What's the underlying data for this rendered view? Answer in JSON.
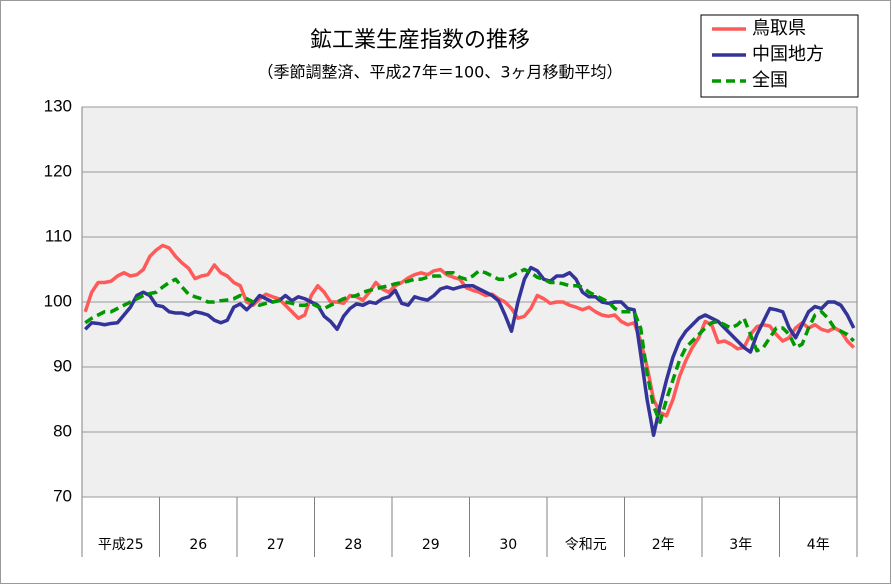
{
  "chart_data": {
    "type": "line",
    "title": "鉱工業生産指数の推移",
    "subtitle": "（季節調整済、平成27年＝100、3ヶ月移動平均）",
    "categories": [
      "平成25",
      null,
      null,
      null,
      null,
      null,
      null,
      null,
      null,
      null,
      null,
      null,
      "26",
      null,
      null,
      null,
      null,
      null,
      null,
      null,
      null,
      null,
      null,
      null,
      "27",
      null,
      null,
      null,
      null,
      null,
      null,
      null,
      null,
      null,
      null,
      null,
      "28",
      null,
      null,
      null,
      null,
      null,
      null,
      null,
      null,
      null,
      null,
      null,
      "29",
      null,
      null,
      null,
      null,
      null,
      null,
      null,
      null,
      null,
      null,
      null,
      "30",
      null,
      null,
      null,
      null,
      null,
      null,
      null,
      null,
      null,
      null,
      null,
      "令和元",
      null,
      null,
      null,
      null,
      null,
      null,
      null,
      null,
      null,
      null,
      null,
      "2年",
      null,
      null,
      null,
      null,
      null,
      null,
      null,
      null,
      null,
      null,
      null,
      "3年",
      null,
      null,
      null,
      null,
      null,
      null,
      null,
      null,
      null,
      null,
      null,
      "4年",
      null,
      null,
      null,
      null,
      null,
      null,
      null,
      null,
      null,
      null,
      null
    ],
    "series": [
      {
        "name": "鳥取県",
        "color": "#ff5a5a",
        "dash": false,
        "values": [
          98.5,
          101.5,
          103,
          103,
          103.2,
          104,
          104.5,
          104,
          104.2,
          105,
          107,
          108,
          108.7,
          108.3,
          107,
          106,
          105.2,
          103.6,
          104,
          104.2,
          105.7,
          104.5,
          104,
          103,
          102.5,
          100,
          99.5,
          100.5,
          101.2,
          100.8,
          100.5,
          99.5,
          98.5,
          97.5,
          98,
          101,
          102.5,
          101.5,
          100,
          100,
          99.8,
          101,
          100.8,
          100.3,
          101.5,
          103,
          102,
          101.5,
          102.5,
          103,
          103.7,
          104.2,
          104.5,
          104.2,
          104.8,
          105,
          104.2,
          103.8,
          103.5,
          102.2,
          101.8,
          101.5,
          101,
          101.2,
          100.5,
          100,
          99,
          97.5,
          97.8,
          99,
          101,
          100.5,
          99.8,
          100,
          100,
          99.5,
          99.2,
          98.8,
          99.2,
          98.5,
          98,
          97.8,
          98,
          97,
          96.5,
          96.8,
          94,
          90,
          85,
          83,
          82.5,
          85,
          88.5,
          91,
          93,
          94.5,
          97,
          96.5,
          93.8,
          94,
          93.5,
          92.8,
          93,
          95,
          96.2,
          96.5,
          96.3,
          95,
          94,
          94.5,
          96,
          96.8,
          96,
          96.5,
          95.8,
          95.5,
          96,
          95.5,
          94,
          93
        ]
      },
      {
        "name": "中国地方",
        "color": "#333399",
        "dash": false,
        "values": [
          95.8,
          96.8,
          96.7,
          96.5,
          96.7,
          96.8,
          98,
          99.2,
          101,
          101.5,
          101,
          99.5,
          99.3,
          98.5,
          98.3,
          98.3,
          98,
          98.5,
          98.3,
          98,
          97.2,
          96.8,
          97.2,
          99.2,
          99.7,
          98.8,
          99.8,
          101,
          100.5,
          100,
          100.2,
          101,
          100.2,
          100.8,
          100.5,
          100,
          99.5,
          97.8,
          97,
          95.8,
          97.8,
          99,
          99.7,
          99.5,
          100,
          99.8,
          100.5,
          100.8,
          101.8,
          99.8,
          99.5,
          100.8,
          100.5,
          100.3,
          101,
          102,
          102.3,
          102,
          102.3,
          102.5,
          102.5,
          102,
          101.5,
          101,
          100.2,
          98,
          95.5,
          100,
          103.5,
          105.3,
          104.8,
          103.5,
          103.2,
          104,
          104,
          104.5,
          103.5,
          101.5,
          100.8,
          100.8,
          100,
          99.8,
          100,
          100,
          99,
          98.8,
          92,
          85,
          79.5,
          84,
          88,
          91.5,
          94,
          95.5,
          96.5,
          97.5,
          98,
          97.5,
          97,
          96,
          95,
          94,
          93,
          92.3,
          95,
          97,
          99,
          98.8,
          98.5,
          96,
          94.5,
          96.5,
          98.5,
          99.3,
          99,
          100,
          100,
          99.5,
          98,
          96
        ]
      },
      {
        "name": "全国",
        "color": "#009900",
        "dash": true,
        "values": [
          96.8,
          97.5,
          98,
          98.5,
          98.5,
          99,
          99.5,
          100,
          100.5,
          101,
          101.3,
          101.5,
          102.3,
          103,
          103.5,
          102.3,
          101.2,
          100.8,
          100.5,
          100,
          100,
          100.2,
          100.3,
          100.5,
          101,
          100.5,
          100,
          99.5,
          99.8,
          100,
          100.2,
          100,
          99.8,
          99.5,
          99.5,
          99.8,
          99.3,
          99,
          99.5,
          100,
          100.5,
          100.8,
          101,
          101.5,
          101.8,
          102,
          102.3,
          102.5,
          102.8,
          103,
          103.2,
          103.5,
          103.5,
          103.8,
          104,
          104,
          104.5,
          104.5,
          103.8,
          103.5,
          104,
          104.8,
          104.5,
          104,
          103.5,
          103.5,
          104,
          104.5,
          105,
          104.5,
          103.8,
          103.5,
          103,
          103,
          102.8,
          102.5,
          102.5,
          102.3,
          101.5,
          101,
          100.5,
          100,
          99,
          98.5,
          98.5,
          98.5,
          96,
          89,
          84,
          81.5,
          85,
          88,
          91,
          93,
          94,
          95,
          96,
          96.8,
          97,
          96.5,
          96,
          96.5,
          97.5,
          95,
          92.5,
          93,
          94.5,
          96,
          96,
          95,
          93,
          93.5,
          96,
          98,
          98.5,
          97.5,
          96,
          95.5,
          95,
          94
        ]
      }
    ],
    "ylim": [
      70,
      130
    ],
    "yticks": [
      70,
      80,
      90,
      100,
      110,
      120,
      130
    ],
    "grid": true,
    "legend": "top-right"
  }
}
